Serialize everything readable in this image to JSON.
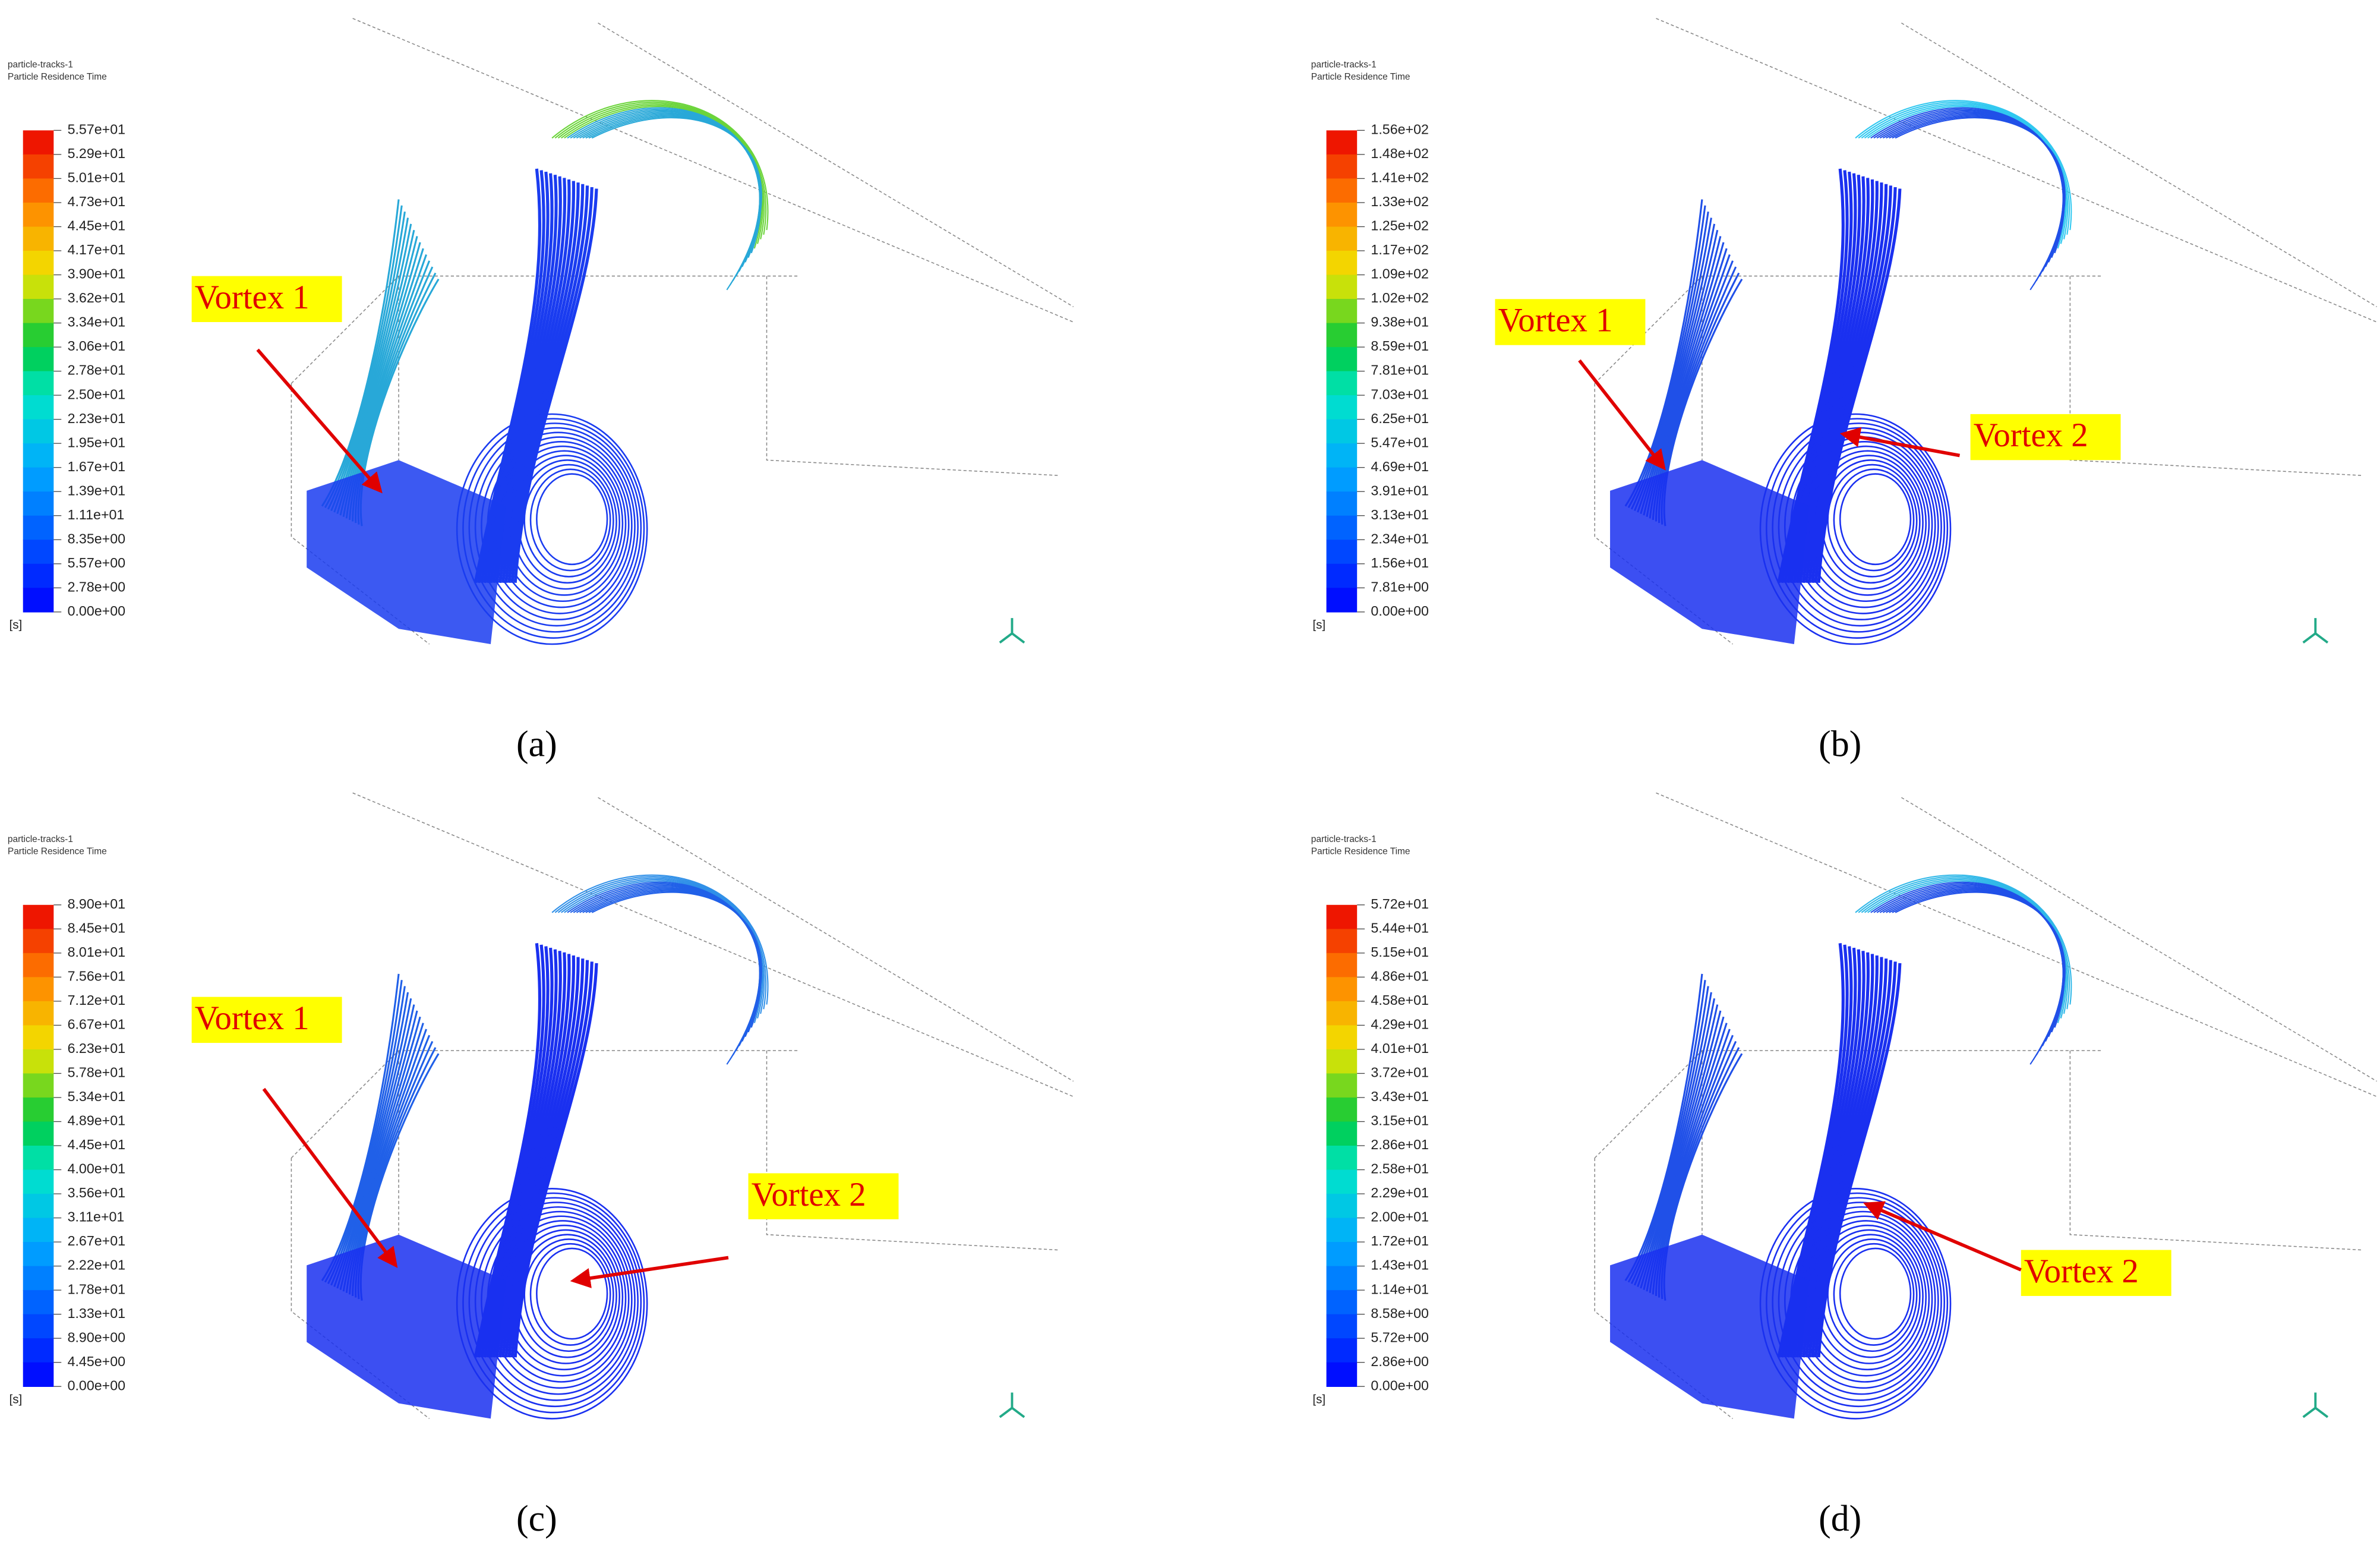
{
  "panels": [
    {
      "title_lines": [
        "particle-tracks-1",
        "Particle Residence Time"
      ],
      "colorbar_labels": [
        "5.57e+01",
        "5.29e+01",
        "5.01e+01",
        "4.73e+01",
        "4.45e+01",
        "4.17e+01",
        "3.90e+01",
        "3.62e+01",
        "3.34e+01",
        "3.06e+01",
        "2.78e+01",
        "2.50e+01",
        "2.23e+01",
        "1.95e+01",
        "1.67e+01",
        "1.39e+01",
        "1.11e+01",
        "8.35e+00",
        "5.57e+00",
        "2.78e+00",
        "0.00e+00"
      ],
      "unit": "[s]",
      "annotations": [
        "Vortex 1"
      ],
      "caption": "(a)"
    },
    {
      "title_lines": [
        "particle-tracks-1",
        "Particle Residence Time"
      ],
      "colorbar_labels": [
        "1.56e+02",
        "1.48e+02",
        "1.41e+02",
        "1.33e+02",
        "1.25e+02",
        "1.17e+02",
        "1.09e+02",
        "1.02e+02",
        "9.38e+01",
        "8.59e+01",
        "7.81e+01",
        "7.03e+01",
        "6.25e+01",
        "5.47e+01",
        "4.69e+01",
        "3.91e+01",
        "3.13e+01",
        "2.34e+01",
        "1.56e+01",
        "7.81e+00",
        "0.00e+00"
      ],
      "unit": "[s]",
      "annotations": [
        "Vortex 1",
        "Vortex 2"
      ],
      "caption": "(b)"
    },
    {
      "title_lines": [
        "particle-tracks-1",
        "Particle Residence Time"
      ],
      "colorbar_labels": [
        "8.90e+01",
        "8.45e+01",
        "8.01e+01",
        "7.56e+01",
        "7.12e+01",
        "6.67e+01",
        "6.23e+01",
        "5.78e+01",
        "5.34e+01",
        "4.89e+01",
        "4.45e+01",
        "4.00e+01",
        "3.56e+01",
        "3.11e+01",
        "2.67e+01",
        "2.22e+01",
        "1.78e+01",
        "1.33e+01",
        "8.90e+00",
        "4.45e+00",
        "0.00e+00"
      ],
      "unit": "[s]",
      "annotations": [
        "Vortex 1",
        "Vortex 2"
      ],
      "caption": "(c)"
    },
    {
      "title_lines": [
        "particle-tracks-1",
        "Particle Residence Time"
      ],
      "colorbar_labels": [
        "5.72e+01",
        "5.44e+01",
        "5.15e+01",
        "4.86e+01",
        "4.58e+01",
        "4.29e+01",
        "4.01e+01",
        "3.72e+01",
        "3.43e+01",
        "3.15e+01",
        "2.86e+01",
        "2.58e+01",
        "2.29e+01",
        "2.00e+01",
        "1.72e+01",
        "1.43e+01",
        "1.14e+01",
        "8.58e+00",
        "5.72e+00",
        "2.86e+00",
        "0.00e+00"
      ],
      "unit": "[s]",
      "annotations": [
        "Vortex 2"
      ],
      "caption": "(d)"
    }
  ]
}
